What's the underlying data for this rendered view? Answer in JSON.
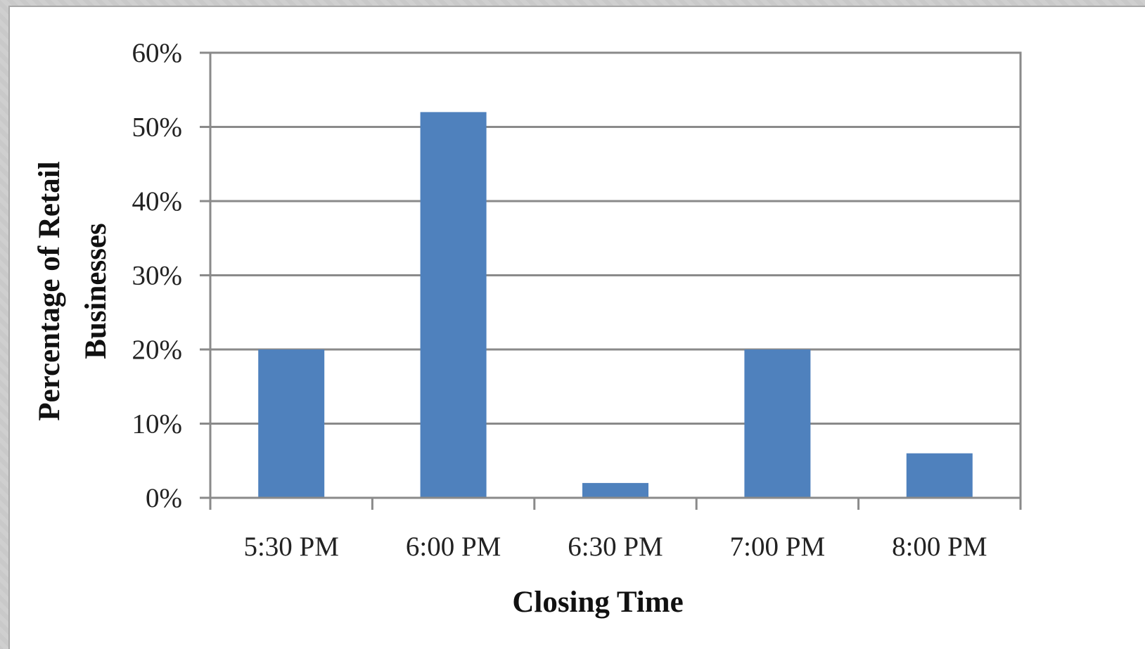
{
  "chart_data": {
    "type": "bar",
    "categories": [
      "5:30 PM",
      "6:00 PM",
      "6:30 PM",
      "7:00 PM",
      "8:00 PM"
    ],
    "values": [
      20,
      52,
      2,
      20,
      6
    ],
    "xlabel": "Closing Time",
    "ylabel": [
      "Percentage of Retail",
      "Businesses"
    ],
    "ylim": [
      0,
      60
    ],
    "yticks": [
      "0%",
      "10%",
      "20%",
      "30%",
      "40%",
      "50%",
      "60%"
    ],
    "grid": true,
    "legend": "none",
    "bar_color": "#4f81bd"
  }
}
